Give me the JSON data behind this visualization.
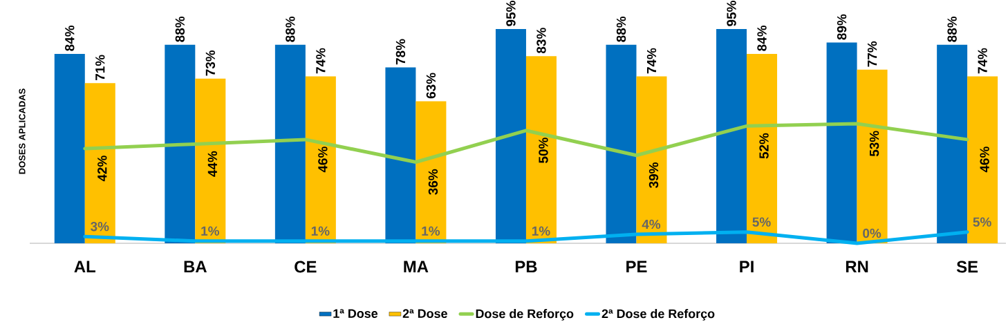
{
  "chart_data": {
    "type": "bar",
    "ylabel": "DOSES APLICADAS",
    "categories": [
      "AL",
      "BA",
      "CE",
      "MA",
      "PB",
      "PE",
      "PI",
      "RN",
      "SE"
    ],
    "series": [
      {
        "name": "1ª Dose",
        "color": "#0070c0",
        "values": [
          84,
          88,
          88,
          78,
          95,
          88,
          95,
          89,
          88
        ],
        "value_labels": [
          "84%",
          "88%",
          "88%",
          "78%",
          "95%",
          "88%",
          "95%",
          "89%",
          "88%"
        ]
      },
      {
        "name": "2ª Dose",
        "color": "#ffc000",
        "values": [
          71,
          73,
          74,
          63,
          83,
          74,
          84,
          77,
          74
        ],
        "value_labels": [
          "71%",
          "73%",
          "74%",
          "63%",
          "83%",
          "74%",
          "84%",
          "77%",
          "74%"
        ]
      },
      {
        "name": "Dose de Reforço",
        "type": "line",
        "color": "#92d050",
        "values": [
          42,
          44,
          46,
          36,
          50,
          39,
          52,
          53,
          46
        ],
        "value_labels": [
          "42%",
          "44%",
          "46%",
          "36%",
          "50%",
          "39%",
          "52%",
          "53%",
          "46%"
        ]
      },
      {
        "name": "2ª Dose de Reforço",
        "type": "line",
        "color": "#00b0f0",
        "values": [
          3,
          1,
          1,
          1,
          1,
          4,
          5,
          0,
          5
        ],
        "value_labels": [
          "3%",
          "1%",
          "1%",
          "1%",
          "1%",
          "4%",
          "5%",
          "0%",
          "5%"
        ]
      }
    ],
    "legend": "bottom",
    "marker": "none",
    "tick_labels": "x"
  }
}
